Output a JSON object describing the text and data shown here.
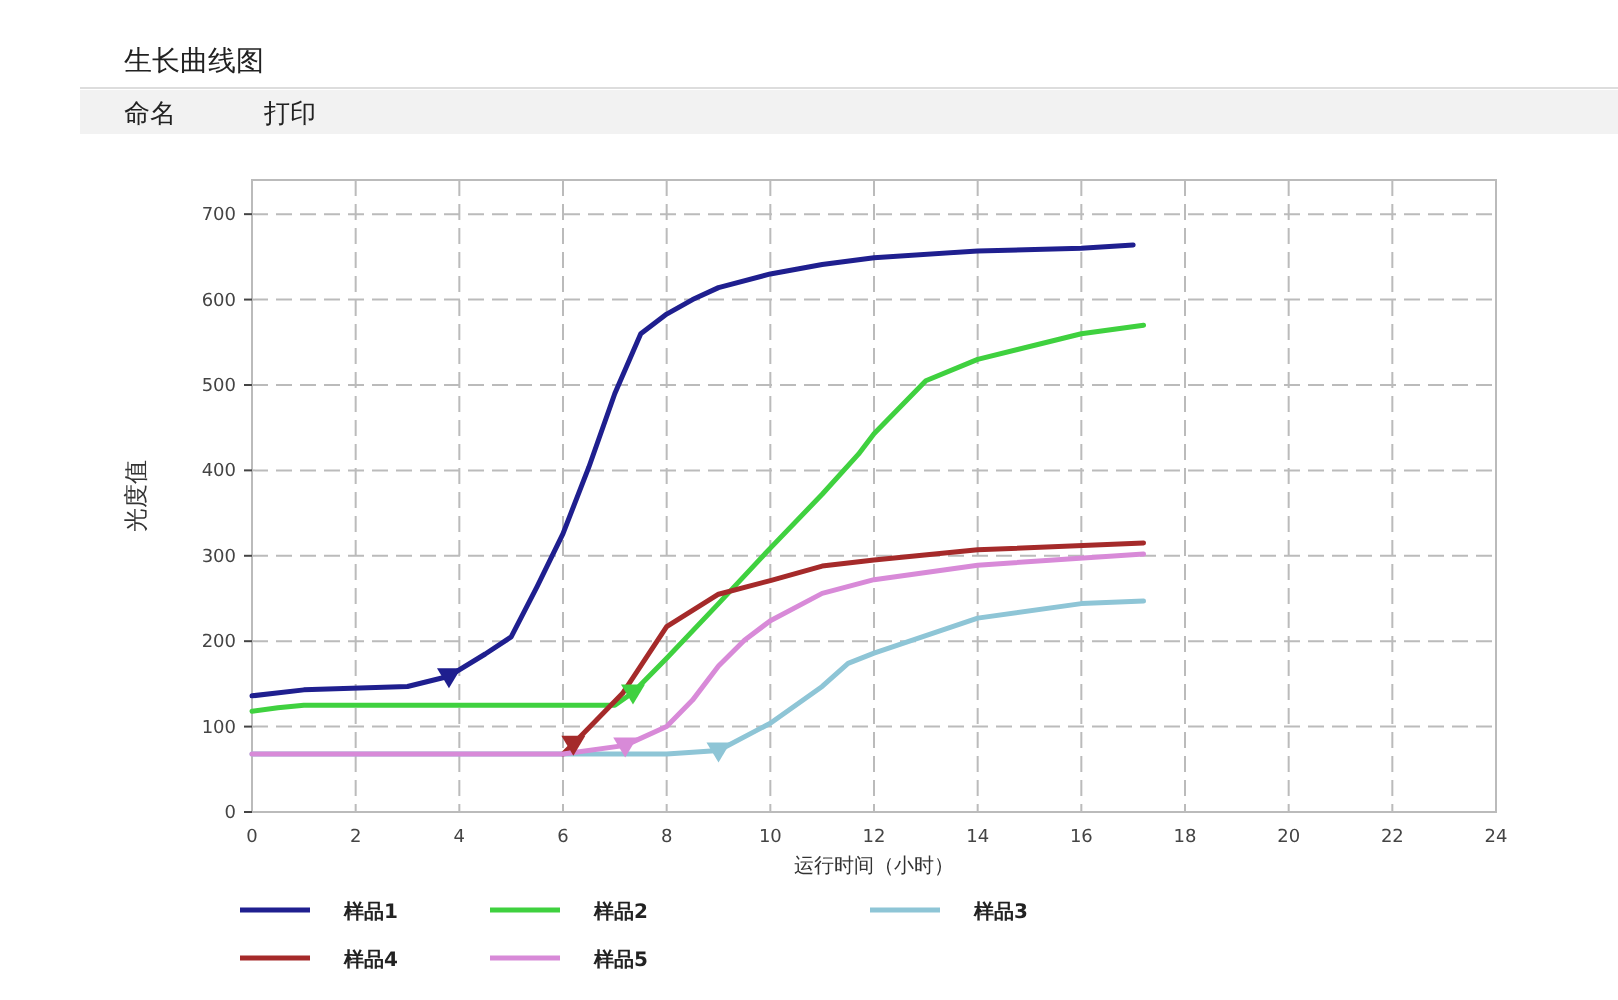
{
  "chart_data": {
    "type": "line",
    "title": "生长曲线图",
    "annotations": [
      "命名",
      "打印"
    ],
    "xlabel": "运行时间（小时）",
    "ylabel": "光度值",
    "xlim": [
      0,
      24
    ],
    "ylim": [
      0,
      740
    ],
    "xticks": [
      0,
      2,
      4,
      6,
      8,
      10,
      12,
      14,
      16,
      18,
      20,
      22,
      24
    ],
    "yticks": [
      0,
      100,
      200,
      300,
      400,
      500,
      600,
      700
    ],
    "grid": true,
    "legend": "bottom",
    "line_style": "solid",
    "series": [
      {
        "name": "样品1",
        "color": "#1f1f8f",
        "x": [
          0,
          1,
          3,
          3.8,
          4.5,
          5,
          5.5,
          6,
          6.5,
          7,
          7.5,
          8,
          8.5,
          9,
          10,
          11,
          12,
          14,
          16,
          17
        ],
        "values": [
          136,
          143,
          147,
          159,
          185,
          205,
          264,
          326,
          404,
          490,
          560,
          583,
          600,
          614,
          630,
          641,
          649,
          657,
          660,
          664
        ]
      },
      {
        "name": "样品2",
        "color": "#3fd13f",
        "x": [
          0,
          0.5,
          1,
          4,
          7,
          7.35,
          8,
          9,
          10,
          11,
          11.7,
          12,
          13,
          14,
          16,
          17.2
        ],
        "values": [
          118,
          122,
          125,
          125,
          125,
          140,
          180,
          244,
          309,
          372,
          419,
          443,
          505,
          530,
          560,
          570
        ]
      },
      {
        "name": "样品3",
        "color": "#8ec5d6",
        "x": [
          0,
          6,
          8,
          9,
          10,
          11,
          11.5,
          12,
          14,
          16,
          17.2
        ],
        "values": [
          68,
          68,
          68,
          72,
          104,
          147,
          174,
          186,
          227,
          244,
          247
        ]
      },
      {
        "name": "样品4",
        "color": "#a52a2a",
        "x": [
          6,
          6.2,
          7.15,
          8,
          9,
          10,
          11,
          12,
          14,
          17.2
        ],
        "values": [
          68,
          80,
          139,
          217,
          255,
          271,
          288,
          295,
          307,
          315
        ]
      },
      {
        "name": "样品5",
        "color": "#d88ad8",
        "x": [
          0,
          6,
          7.2,
          8,
          8.5,
          9,
          9.5,
          10,
          11,
          12,
          14,
          17.2
        ],
        "values": [
          68,
          68,
          78,
          100,
          131,
          171,
          201,
          224,
          256,
          272,
          289,
          302
        ]
      },
      {
        "type": "scatter",
        "marker": "triangle",
        "colors": [
          "#1f1f8f",
          "#3fd13f",
          "#8ec5d6",
          "#a52a2a",
          "#d88ad8"
        ],
        "x": [
          3.8,
          7.35,
          9,
          6.2,
          7.2
        ],
        "values": [
          159,
          140,
          72,
          80,
          78
        ]
      }
    ]
  }
}
